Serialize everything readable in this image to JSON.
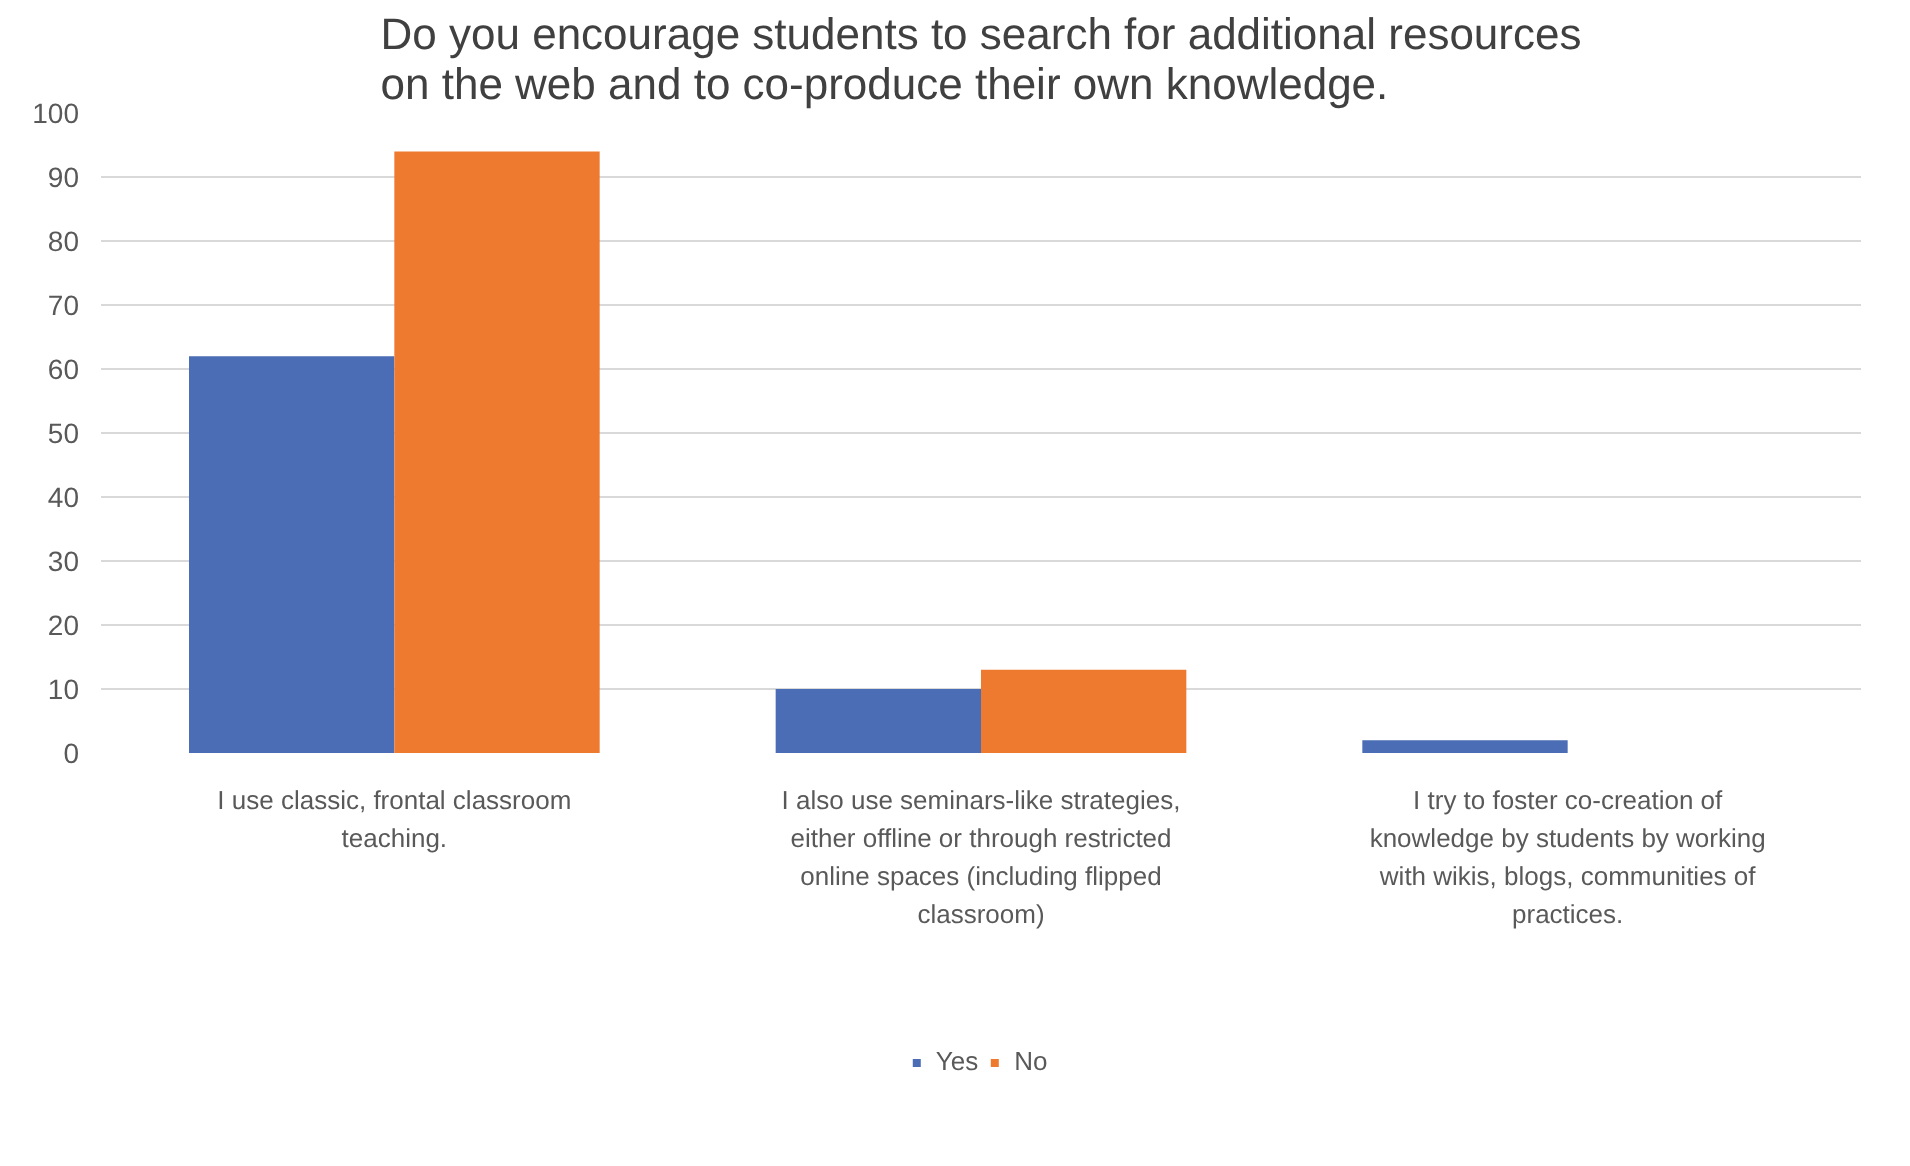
{
  "chart_data": {
    "type": "bar",
    "title": "Do you encourage students to search for additional resources on the web and to co-produce their own knowledge.",
    "categories": [
      "I use classic, frontal classroom teaching.",
      "I also use seminars-like strategies, either offline or through restricted online spaces (including flipped classroom)",
      "I try to foster co-creation of knowledge by students by working with wikis, blogs, communities of practices."
    ],
    "series": [
      {
        "name": "Yes",
        "color": "#4a6db5",
        "values": [
          62,
          10,
          2
        ]
      },
      {
        "name": "No",
        "color": "#ed7a2f",
        "values": [
          94,
          13,
          0
        ]
      }
    ],
    "ylim": [
      0,
      100
    ],
    "yticks": [
      0,
      10,
      20,
      30,
      40,
      50,
      60,
      70,
      80,
      90,
      100
    ],
    "grid": "y",
    "legend": "bottom"
  }
}
